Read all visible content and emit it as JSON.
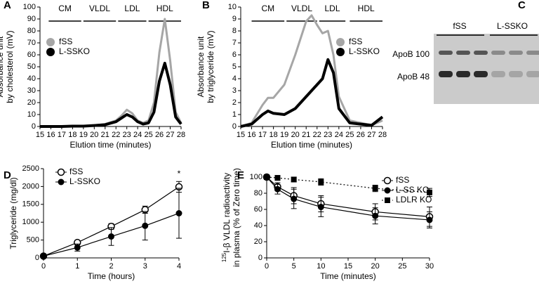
{
  "chart_data": [
    {
      "type": "line",
      "panel": "A",
      "x_label": "Elution time (minutes)",
      "y_label": [
        "Absorbance unit",
        "by cholesterol (mV)"
      ],
      "xlim": [
        15,
        28
      ],
      "xticks": [
        15,
        16,
        17,
        18,
        19,
        20,
        21,
        22,
        23,
        24,
        25,
        26,
        27,
        28
      ],
      "ylim": [
        0,
        100
      ],
      "yticks": [
        0,
        10,
        20,
        30,
        40,
        50,
        60,
        70,
        80,
        90,
        100
      ],
      "legend": "upper left",
      "fractions": [
        {
          "label": "CM",
          "start": 15.8,
          "end": 18.8
        },
        {
          "label": "VLDL",
          "start": 19,
          "end": 22
        },
        {
          "label": "LDL",
          "start": 22.2,
          "end": 24.8
        },
        {
          "label": "HDL",
          "start": 25,
          "end": 28
        }
      ],
      "x": [
        15,
        16,
        17,
        18,
        19,
        20,
        21,
        22,
        22.5,
        23,
        23.5,
        24,
        24.5,
        25,
        25.5,
        26,
        26.5,
        27,
        27.5,
        28
      ],
      "series": [
        {
          "name": "fSS",
          "color": "#a6a6a6",
          "width": 3,
          "values": [
            0,
            0,
            0,
            0.5,
            0.5,
            1,
            2,
            5,
            9,
            14,
            11,
            5,
            3,
            5,
            20,
            62,
            90,
            55,
            12,
            3
          ]
        },
        {
          "name": "L-SSKO",
          "color": "#000000",
          "width": 4,
          "values": [
            0,
            0,
            0,
            0.3,
            0.3,
            0.8,
            1.5,
            4,
            7,
            10,
            8,
            4,
            2,
            3,
            12,
            38,
            53,
            35,
            8,
            2
          ]
        }
      ]
    },
    {
      "type": "line",
      "panel": "B",
      "x_label": "Elution time (minutes)",
      "y_label": [
        "Absorbance unit",
        "by triglyceride (mV)"
      ],
      "xlim": [
        15,
        28
      ],
      "xticks": [
        15,
        16,
        17,
        18,
        19,
        20,
        21,
        22,
        23,
        24,
        25,
        26,
        27,
        28
      ],
      "ylim": [
        0,
        10
      ],
      "yticks": [
        0,
        1,
        2,
        3,
        4,
        5,
        6,
        7,
        8,
        9,
        10
      ],
      "legend": "upper right",
      "fractions": [
        {
          "label": "CM",
          "start": 16,
          "end": 19
        },
        {
          "label": "VLDL",
          "start": 19.2,
          "end": 22
        },
        {
          "label": "LDL",
          "start": 22.2,
          "end": 24.6
        },
        {
          "label": "HDL",
          "start": 25,
          "end": 28
        }
      ],
      "x": [
        15,
        16,
        17,
        17.5,
        18,
        19,
        20,
        21,
        21.5,
        22,
        22.5,
        23,
        23.5,
        24,
        25,
        26,
        27,
        28
      ],
      "series": [
        {
          "name": "fSS",
          "color": "#a6a6a6",
          "width": 3,
          "values": [
            0,
            0.3,
            1.8,
            2.4,
            2.4,
            3.5,
            6,
            8.8,
            9.3,
            8.5,
            7.8,
            8,
            6,
            2.5,
            0.5,
            0.3,
            0.1,
            0.5
          ]
        },
        {
          "name": "L-SSKO",
          "color": "#000000",
          "width": 4,
          "values": [
            0,
            0.2,
            1,
            1.3,
            1.1,
            1,
            1.5,
            2.5,
            3,
            3.5,
            4,
            5.6,
            4.5,
            1.5,
            0.3,
            0.2,
            0.1,
            0.8
          ]
        }
      ]
    },
    {
      "type": "blot",
      "panel": "C",
      "groups": [
        "fSS",
        "L-SSKO"
      ],
      "bands": [
        "ApoB 100",
        "ApoB 48"
      ]
    },
    {
      "type": "line",
      "panel": "D",
      "x_label": "Time (hours)",
      "y_label": [
        "Triglyceride (mg/dl)"
      ],
      "xlim": [
        0,
        4
      ],
      "xticks": [
        0,
        1,
        2,
        3,
        4
      ],
      "ylim": [
        0,
        2500
      ],
      "yticks": [
        0,
        500,
        1000,
        1500,
        2000,
        2500
      ],
      "legend": "upper left",
      "annotations": [
        {
          "text": "*",
          "x": 4,
          "y": 2350
        }
      ],
      "x": [
        0,
        1,
        2,
        3,
        4
      ],
      "series": [
        {
          "name": "fSS",
          "color": "#000000",
          "marker": "open-circle",
          "values": [
            50,
            430,
            880,
            1350,
            1990
          ],
          "errors": [
            20,
            60,
            80,
            100,
            150
          ]
        },
        {
          "name": "L-SSKO",
          "color": "#000000",
          "marker": "circle",
          "values": [
            50,
            290,
            600,
            900,
            1250
          ],
          "errors": [
            30,
            100,
            250,
            400,
            700
          ]
        }
      ]
    },
    {
      "type": "line",
      "panel": "E",
      "x_label": "Time (minutes)",
      "y_label_sup": "125",
      "y_label": [
        "I-β VLDL radioactivity",
        "in plasma (% of Zero time)"
      ],
      "xlim": [
        0,
        30
      ],
      "xticks": [
        0,
        5,
        10,
        15,
        20,
        25,
        30
      ],
      "ylim": [
        0,
        100
      ],
      "yticks": [
        0,
        20,
        40,
        60,
        80,
        100
      ],
      "legend": "upper right",
      "x": [
        0,
        2,
        5,
        10,
        20,
        30
      ],
      "series": [
        {
          "name": "fSS",
          "color": "#000000",
          "marker": "open-circle",
          "values": [
            100,
            88,
            77,
            67,
            57,
            51
          ],
          "errors": [
            0,
            5,
            10,
            10,
            10,
            12
          ]
        },
        {
          "name": "L-SS KO",
          "color": "#000000",
          "marker": "circle",
          "values": [
            100,
            85,
            73,
            63,
            52,
            47
          ],
          "errors": [
            0,
            6,
            12,
            12,
            10,
            10
          ]
        },
        {
          "name": "LDLR KO",
          "color": "#000000",
          "marker": "square",
          "dash": "dotted",
          "values": [
            100,
            99,
            97,
            94,
            86,
            81
          ],
          "errors": [
            0,
            3,
            3,
            4,
            4,
            5
          ]
        }
      ]
    }
  ]
}
